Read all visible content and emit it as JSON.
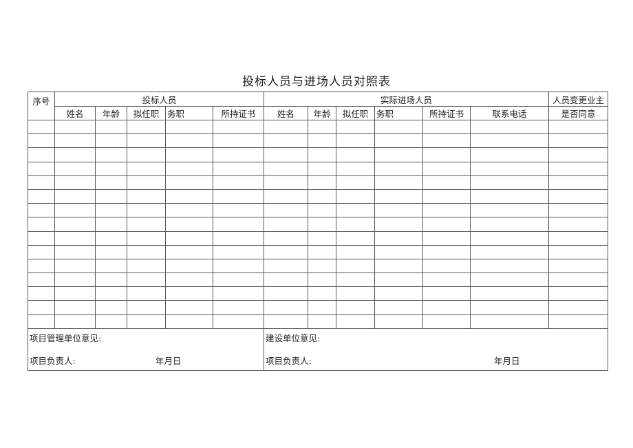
{
  "title": "投标人员与进场人员对照表",
  "header": {
    "seq": "序号",
    "bid_group": "投标人员",
    "actual_group": "实际进场人员",
    "change_consent_line1": "人员变更业主",
    "change_consent_line2": "是否同意",
    "bid_columns": [
      "姓名",
      "年龄",
      "拟任职",
      "务职",
      "所持证书"
    ],
    "actual_columns": [
      "姓名",
      "年龄",
      "拟任职",
      "务职",
      "所持证书",
      "联系电话"
    ]
  },
  "rows": [
    [],
    [],
    [],
    [],
    [],
    [],
    [],
    [],
    [],
    [],
    [],
    [],
    [],
    [],
    []
  ],
  "footer": {
    "left_opinion": "项目管理单位意见:",
    "left_person": "项目负责人:",
    "left_date": "年月日",
    "right_opinion": "建设单位意见:",
    "right_person": "项目负责人:",
    "right_date": "年月日"
  }
}
